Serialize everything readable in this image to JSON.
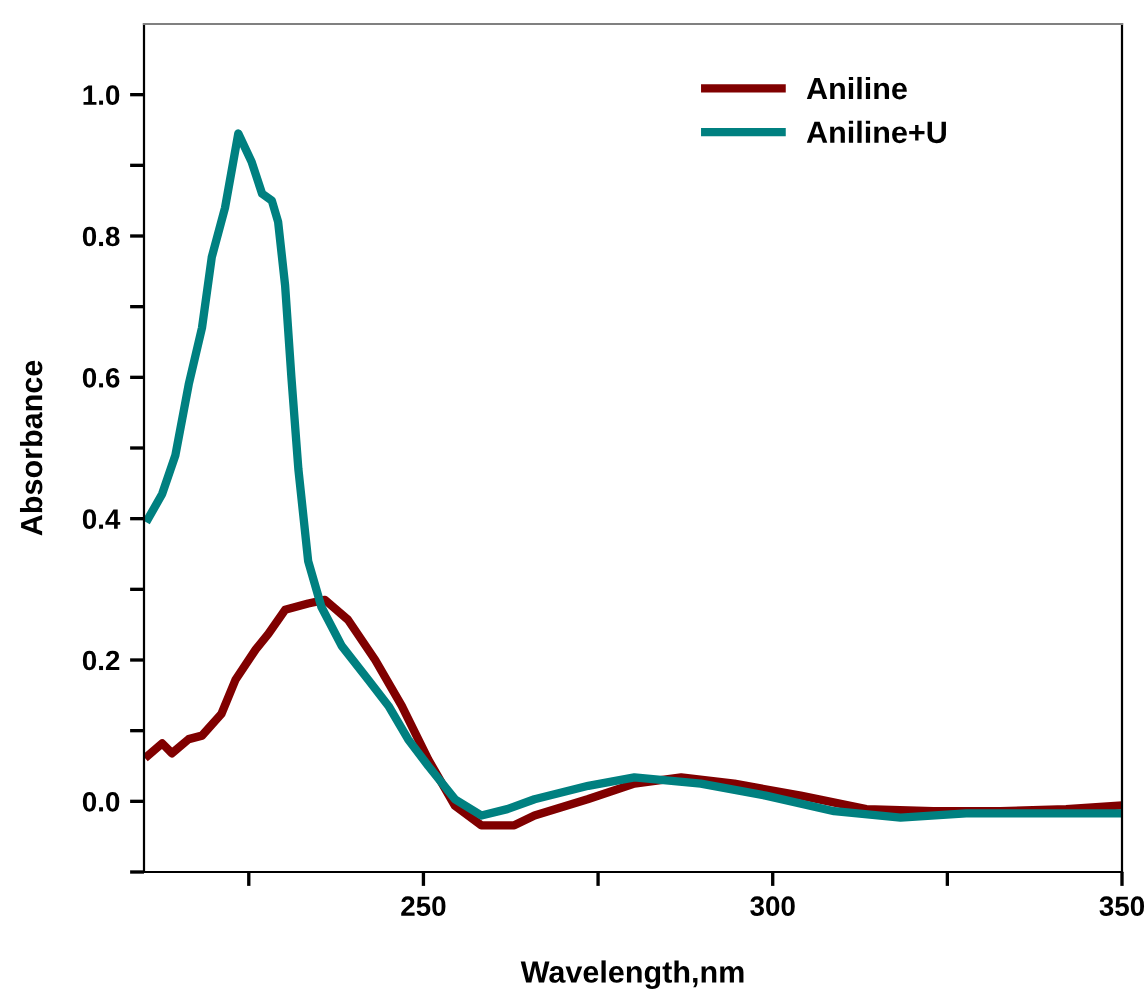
{
  "chart_data": {
    "type": "line",
    "xlabel": "Wavelength,nm",
    "ylabel": "Absorbance",
    "xlim": [
      210,
      350
    ],
    "xticks": [
      {
        "value": 225,
        "label": null
      },
      250,
      {
        "value": 275,
        "label": null
      },
      300,
      {
        "value": 325,
        "label": null
      },
      350
    ],
    "ylim": [
      -0.1,
      1.1
    ],
    "yticks": [
      {
        "value": -0.1,
        "label": null
      },
      "0.0",
      {
        "value": 0.1,
        "label": null
      },
      0.2,
      {
        "value": 0.3,
        "label": null
      },
      0.4,
      {
        "value": 0.5,
        "label": null
      },
      0.6,
      {
        "value": 0.7,
        "label": null
      },
      0.8,
      {
        "value": 0.9,
        "label": null
      },
      "1.0"
    ],
    "grid": false,
    "legend": "top right",
    "marker": "none",
    "line_style": "solid",
    "series": [
      {
        "name": "Aniline",
        "color": "#800000",
        "x": [
          210.6,
          212.6,
          214,
          216.4,
          218.3,
          221.1,
          223.1,
          226,
          227.8,
          230.2,
          233.5,
          235.9,
          239.2,
          243.1,
          246.9,
          250.7,
          254.5,
          258.3,
          263,
          265.9,
          273.5,
          280.2,
          286.9,
          294.5,
          304,
          313.4,
          323,
          332.6,
          342,
          349.7
        ],
        "values": [
          0.065,
          0.082,
          0.068,
          0.088,
          0.093,
          0.124,
          0.172,
          0.215,
          0.237,
          0.271,
          0.28,
          0.285,
          0.257,
          0.2,
          0.135,
          0.059,
          -0.006,
          -0.034,
          -0.034,
          -0.02,
          0.003,
          0.025,
          0.034,
          0.025,
          0.008,
          -0.011,
          -0.014,
          -0.014,
          -0.011,
          -0.006
        ]
      },
      {
        "name": "Aniline+U",
        "color": "#008080",
        "x": [
          210.6,
          212.6,
          214.5,
          216.4,
          218.3,
          219.7,
          221.6,
          223.5,
          225.4,
          226.9,
          228.3,
          229.2,
          230.2,
          231.1,
          232.1,
          233.5,
          235.4,
          238.3,
          242.1,
          245,
          247.8,
          250.7,
          254.5,
          258.3,
          262,
          265.9,
          273.6,
          280.2,
          289.7,
          299,
          308.8,
          318.3,
          327.7,
          337.3,
          349.7
        ],
        "values": [
          0.4,
          0.435,
          0.49,
          0.59,
          0.67,
          0.77,
          0.84,
          0.945,
          0.905,
          0.86,
          0.85,
          0.82,
          0.73,
          0.6,
          0.47,
          0.34,
          0.275,
          0.22,
          0.172,
          0.135,
          0.088,
          0.05,
          0.003,
          -0.02,
          -0.011,
          0.003,
          0.022,
          0.034,
          0.025,
          0.008,
          -0.014,
          -0.023,
          -0.017,
          -0.017,
          -0.017
        ]
      }
    ]
  }
}
